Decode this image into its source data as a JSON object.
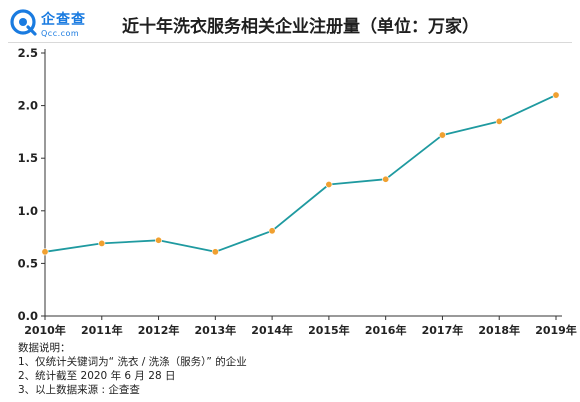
{
  "header": {
    "logo_name": "企查查",
    "logo_domain": "Qcc.com",
    "title": "近十年洗衣服务相关企业注册量（单位：万家）"
  },
  "notes": {
    "heading": "数据说明：",
    "lines": [
      "1、仅统计关键词为“ 洗衣 / 洗涤（服务）” 的企业",
      "2、统计截至 2020 年 6 月 28 日",
      "3、以上数据来源 : 企查查"
    ]
  },
  "colors": {
    "line": "#1f9aa0",
    "marker": "#f0a030",
    "brand": "#1a7be0"
  },
  "chart_data": {
    "type": "line",
    "title": "近十年洗衣服务相关企业注册量（单位：万家）",
    "categories": [
      "2010年",
      "2011年",
      "2012年",
      "2013年",
      "2014年",
      "2015年",
      "2016年",
      "2017年",
      "2018年",
      "2019年"
    ],
    "series": [
      {
        "values": [
          0.61,
          0.69,
          0.72,
          0.61,
          0.81,
          1.25,
          1.3,
          1.72,
          1.85,
          2.1
        ]
      }
    ],
    "yticks": [
      "0.0",
      "0.5",
      "1.0",
      "1.5",
      "2.0",
      "2.5"
    ],
    "ylim": [
      0,
      2.5
    ],
    "grid": false,
    "legend": "none"
  }
}
